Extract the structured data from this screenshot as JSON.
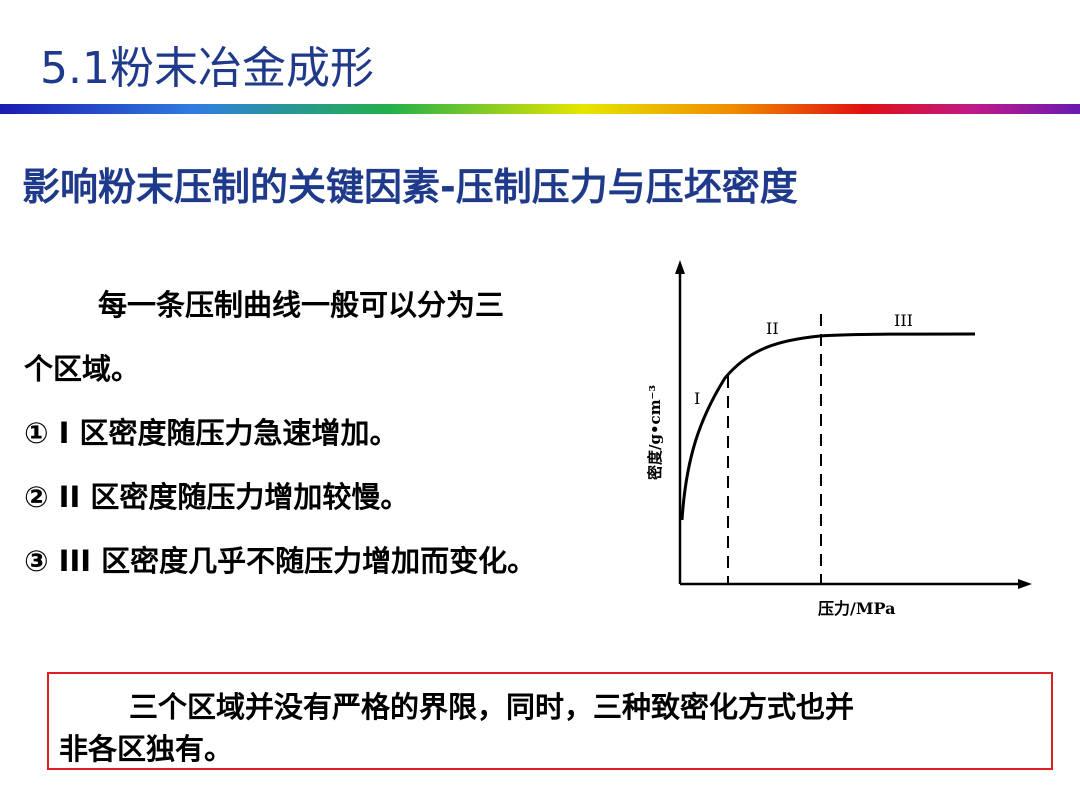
{
  "header": {
    "title": "5.1粉末冶金成形",
    "accent_color": "#1f3a8a"
  },
  "section_heading": "影响粉末压制的关键因素-压制压力与压坯密度",
  "body": {
    "line1": "每一条压制曲线一般可以分为三",
    "line2": "个区域。",
    "item1": "① Ⅰ 区密度随压力急速增加。",
    "item2": "② II 区密度随压力增加较慢。",
    "item3": "③ III 区密度几乎不随压力增加而变化。"
  },
  "figure": {
    "ylabel": "密度/g•cm⁻³",
    "xlabel": "压力/MPa",
    "region_labels": [
      "I",
      "II",
      "III"
    ]
  },
  "note": {
    "line1": "三个区域并没有严格的界限，同时，三种致密化方式也并",
    "line2": "非各区独有。",
    "border_color": "#e02020"
  }
}
